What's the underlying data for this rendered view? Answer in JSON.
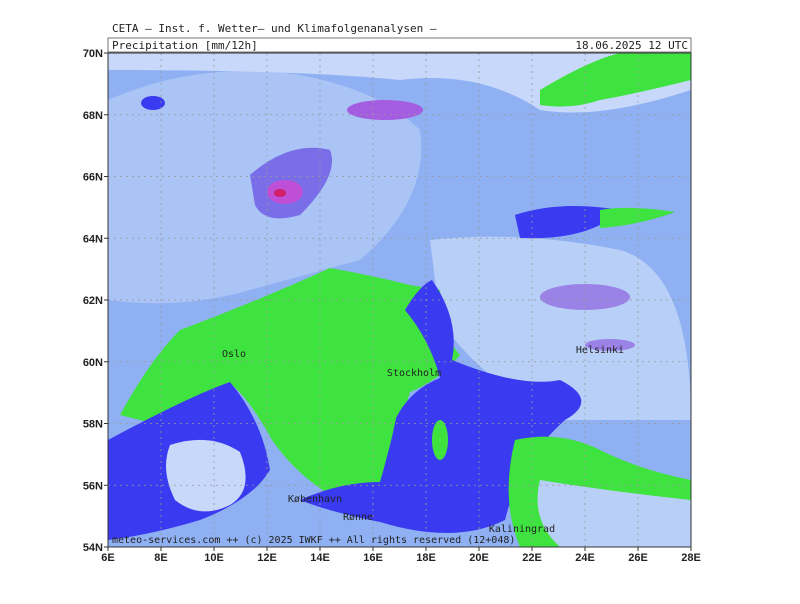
{
  "header": {
    "institute": "CETA — Inst. f. Wetter— und Klimafolgenanalysen —",
    "title": "Precipitation [mm/12h]",
    "date": "18.06.2025  12 UTC"
  },
  "map": {
    "lat_labels": [
      "70N",
      "68N",
      "66N",
      "64N",
      "62N",
      "60N",
      "58N",
      "56N",
      "54N"
    ],
    "lon_labels": [
      "6E",
      "8E",
      "10E",
      "12E",
      "14E",
      "16E",
      "18E",
      "20E",
      "22E",
      "24E",
      "26E",
      "28E"
    ],
    "cities": [
      "Oslo",
      "Stockholm",
      "Helsinki",
      "København",
      "Rønne",
      "Kaliningrad"
    ],
    "footer": "meteo-services.com ++ (c) 2025 IWKF ++ All rights reserved (12+048)"
  }
}
